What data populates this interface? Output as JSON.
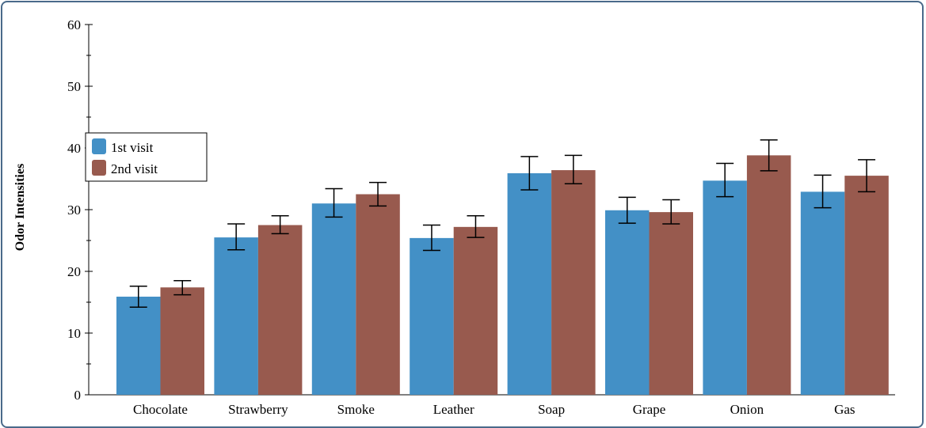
{
  "chart_data": {
    "type": "bar",
    "ylabel": "Odor Intensities",
    "xlabel": "",
    "ylim": [
      0,
      60
    ],
    "yticks": [
      0,
      10,
      20,
      30,
      40,
      50,
      60
    ],
    "categories": [
      "Chocolate",
      "Strawberry",
      "Smoke",
      "Leather",
      "Soap",
      "Grape",
      "Onion",
      "Gas"
    ],
    "series": [
      {
        "name": "1st visit",
        "color": "#4390c6",
        "values": [
          15.9,
          25.5,
          31.0,
          25.4,
          35.9,
          29.9,
          34.7,
          32.9
        ],
        "err_low": [
          14.2,
          23.5,
          28.8,
          23.4,
          33.2,
          27.8,
          32.1,
          30.3
        ],
        "err_high": [
          17.6,
          27.7,
          33.4,
          27.5,
          38.6,
          32.0,
          37.5,
          35.6
        ]
      },
      {
        "name": "2nd visit",
        "color": "#985a4e",
        "values": [
          17.4,
          27.5,
          32.5,
          27.2,
          36.4,
          29.6,
          38.8,
          35.5
        ],
        "err_low": [
          16.2,
          26.1,
          30.6,
          25.5,
          34.2,
          27.7,
          36.3,
          32.9
        ],
        "err_high": [
          18.5,
          29.0,
          34.4,
          29.0,
          38.8,
          31.6,
          41.3,
          38.1
        ]
      }
    ],
    "legend_position": "upper-left",
    "grid": false
  }
}
